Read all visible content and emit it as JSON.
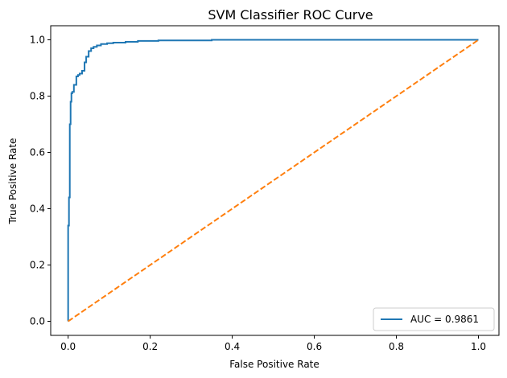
{
  "chart_data": {
    "type": "line",
    "title": "SVM Classifier ROC Curve",
    "xlabel": "False Positive Rate",
    "ylabel": "True Positive Rate",
    "xlim": [
      -0.0425,
      1.05
    ],
    "ylim": [
      -0.05,
      1.05
    ],
    "xticks": [
      "0.0",
      "0.2",
      "0.4",
      "0.6",
      "0.8",
      "1.0"
    ],
    "yticks": [
      "0.0",
      "0.2",
      "0.4",
      "0.6",
      "0.8",
      "1.0"
    ],
    "grid": false,
    "legend_position": "lower-right",
    "series": [
      {
        "name": "AUC = 0.9861",
        "color": "#1f77b4",
        "style": "step",
        "x": [
          0.0,
          0.0,
          0.002,
          0.002,
          0.004,
          0.004,
          0.006,
          0.006,
          0.008,
          0.008,
          0.01,
          0.01,
          0.014,
          0.014,
          0.02,
          0.02,
          0.024,
          0.024,
          0.028,
          0.028,
          0.034,
          0.034,
          0.04,
          0.04,
          0.044,
          0.044,
          0.05,
          0.05,
          0.056,
          0.056,
          0.062,
          0.062,
          0.07,
          0.07,
          0.08,
          0.08,
          0.095,
          0.095,
          0.11,
          0.11,
          0.14,
          0.14,
          0.17,
          0.17,
          0.22,
          0.22,
          0.35,
          0.35,
          1.0
        ],
        "y": [
          0.0,
          0.34,
          0.34,
          0.44,
          0.44,
          0.7,
          0.7,
          0.78,
          0.78,
          0.81,
          0.81,
          0.815,
          0.815,
          0.84,
          0.84,
          0.87,
          0.87,
          0.875,
          0.875,
          0.88,
          0.88,
          0.89,
          0.89,
          0.92,
          0.92,
          0.94,
          0.94,
          0.96,
          0.96,
          0.97,
          0.97,
          0.975,
          0.975,
          0.98,
          0.98,
          0.985,
          0.985,
          0.988,
          0.988,
          0.99,
          0.99,
          0.993,
          0.993,
          0.996,
          0.996,
          0.998,
          0.998,
          1.0,
          1.0
        ]
      },
      {
        "name": "",
        "color": "#ff7f0e",
        "style": "dashed",
        "x": [
          0.0,
          1.0
        ],
        "y": [
          0.0,
          1.0
        ]
      }
    ]
  }
}
